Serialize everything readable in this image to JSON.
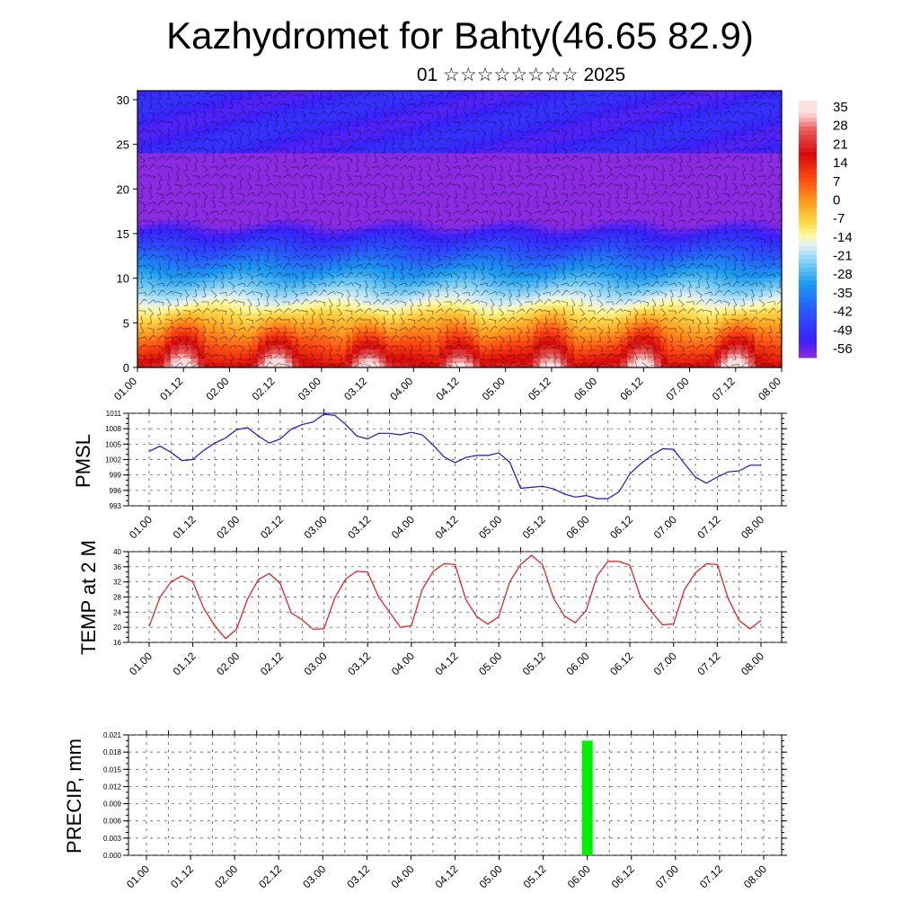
{
  "title": "Kazhydromet for Bahty(46.65 82.9)",
  "subtitle": "01 ☆☆☆☆☆☆☆☆ 2025",
  "time_ticks": [
    "01.00",
    "01.12",
    "02.00",
    "02.12",
    "03.00",
    "03.12",
    "04.00",
    "04.12",
    "05.00",
    "05.12",
    "06.00",
    "06.12",
    "07.00",
    "07.12",
    "08.00"
  ],
  "chart_data": [
    {
      "type": "heatmap",
      "name": "cross-section",
      "y_ticks": [
        "0",
        "5",
        "10",
        "15",
        "20",
        "25",
        "30"
      ],
      "ylim": [
        0,
        31
      ],
      "colorbar_labels": [
        "35",
        "28",
        "21",
        "14",
        "7",
        "0",
        "-7",
        "-14",
        "-21",
        "-28",
        "-35",
        "-42",
        "-49",
        "-56"
      ],
      "colorbar_range": [
        -63,
        42
      ],
      "overlay": "wind barbs"
    },
    {
      "type": "line",
      "ylabel": "PMSL",
      "y_ticks": [
        "1011",
        "1008",
        "1005",
        "1002",
        "999",
        "996",
        "993"
      ],
      "ylim": [
        993,
        1011
      ],
      "color": "#1414d2",
      "x": [
        0,
        3,
        6,
        9,
        12,
        15,
        18,
        21,
        24,
        27,
        30,
        33,
        36,
        39,
        42,
        45,
        48,
        51,
        54,
        57,
        60,
        63,
        66,
        69,
        72,
        75,
        78,
        81,
        84,
        87,
        90,
        93,
        96,
        99,
        102,
        105,
        108,
        111,
        114,
        117,
        120,
        123,
        126,
        129,
        132,
        135,
        138,
        141,
        144,
        147,
        150,
        153,
        156,
        159,
        162,
        165,
        168
      ],
      "values": [
        1003.6,
        1004.6,
        1003.4,
        1001.8,
        1002.0,
        1003.8,
        1005.2,
        1006.2,
        1007.8,
        1008.2,
        1006.6,
        1005.2,
        1006.0,
        1007.9,
        1008.8,
        1009.3,
        1010.8,
        1010.6,
        1008.8,
        1006.6,
        1006.0,
        1007.1,
        1007.1,
        1006.8,
        1007.3,
        1006.8,
        1004.8,
        1002.5,
        1001.4,
        1002.4,
        1002.8,
        1002.8,
        1003.3,
        1001.5,
        996.4,
        996.6,
        996.8,
        996.3,
        995.3,
        994.7,
        995.0,
        994.4,
        994.4,
        995.7,
        999.2,
        1001.2,
        1002.8,
        1004.1,
        1004.0,
        1001.2,
        998.6,
        997.4,
        998.6,
        999.6,
        999.8,
        1000.9,
        1000.9
      ]
    },
    {
      "type": "line",
      "ylabel": "TEMP at 2 M",
      "y_ticks": [
        "40",
        "36",
        "32",
        "28",
        "24",
        "20",
        "16"
      ],
      "ylim": [
        16,
        40
      ],
      "color": "#e61414",
      "x": [
        0,
        3,
        6,
        9,
        12,
        15,
        18,
        21,
        24,
        27,
        30,
        33,
        36,
        39,
        42,
        45,
        48,
        51,
        54,
        57,
        60,
        63,
        66,
        69,
        72,
        75,
        78,
        81,
        84,
        87,
        90,
        93,
        96,
        99,
        102,
        105,
        108,
        111,
        114,
        117,
        120,
        123,
        126,
        129,
        132,
        135,
        138,
        141,
        144,
        147,
        150,
        153,
        156,
        159,
        162,
        165,
        168
      ],
      "values": [
        20.2,
        28.0,
        32.0,
        33.6,
        32.0,
        25.0,
        20.4,
        17.0,
        19.5,
        27.4,
        32.6,
        34.2,
        31.6,
        23.8,
        22.0,
        19.5,
        19.6,
        27.8,
        32.8,
        34.8,
        34.6,
        28.0,
        24.0,
        20.0,
        20.4,
        30.0,
        34.8,
        36.8,
        36.6,
        27.2,
        22.8,
        20.8,
        22.8,
        32.0,
        36.6,
        39.0,
        36.6,
        27.8,
        23.0,
        21.2,
        24.4,
        33.6,
        37.4,
        37.4,
        36.4,
        27.8,
        24.0,
        20.6,
        20.9,
        30.0,
        34.4,
        36.8,
        36.6,
        27.6,
        21.8,
        19.6,
        21.8
      ]
    },
    {
      "type": "bar",
      "ylabel": "PRECIP, mm",
      "y_ticks": [
        "0.021",
        "0.018",
        "0.015",
        "0.012",
        "0.009",
        "0.006",
        "0.003",
        "0.000"
      ],
      "ylim": [
        0,
        0.021
      ],
      "color": "#00f000",
      "x": [
        120
      ],
      "values": [
        0.02
      ]
    }
  ]
}
